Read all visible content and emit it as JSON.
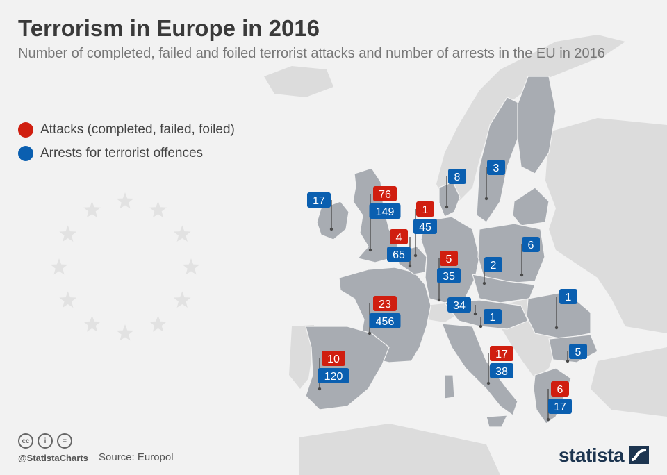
{
  "header": {
    "title": "Terrorism in Europe in 2016",
    "subtitle": "Number of completed, failed and foiled terrorist attacks and number of arrests in the EU in 2016"
  },
  "legend": [
    {
      "label": "Attacks (completed, failed, foiled)",
      "color": "#d01e0f"
    },
    {
      "label": "Arrests for terrorist offences",
      "color": "#0a5fb0"
    }
  ],
  "colors": {
    "attack": "#d01e0f",
    "arrest": "#0a5fb0",
    "eu_country": "#a8acb2",
    "non_eu_land": "#dcdcdc",
    "background": "#f2f2f2",
    "eu_stars": "#e2e2e2"
  },
  "markers": [
    {
      "country": "Ireland",
      "arrests": "17"
    },
    {
      "country": "United Kingdom",
      "attacks": "76",
      "arrests": "149"
    },
    {
      "country": "Netherlands",
      "attacks": "1",
      "arrests": "45"
    },
    {
      "country": "Belgium",
      "attacks": "4",
      "arrests": "65"
    },
    {
      "country": "Denmark",
      "arrests": "8"
    },
    {
      "country": "Sweden",
      "arrests": "3"
    },
    {
      "country": "Poland",
      "arrests": "6"
    },
    {
      "country": "Germany",
      "attacks": "5",
      "arrests": "35"
    },
    {
      "country": "Czech Republic",
      "arrests": "2"
    },
    {
      "country": "Austria",
      "arrests": "34"
    },
    {
      "country": "Slovenia",
      "arrests": "1"
    },
    {
      "country": "France",
      "attacks": "23",
      "arrests": "456"
    },
    {
      "country": "Spain",
      "attacks": "10",
      "arrests": "120"
    },
    {
      "country": "Italy",
      "attacks": "17",
      "arrests": "38"
    },
    {
      "country": "Romania",
      "arrests": "1"
    },
    {
      "country": "Bulgaria",
      "arrests": "5"
    },
    {
      "country": "Greece",
      "attacks": "6",
      "arrests": "17"
    }
  ],
  "footer": {
    "cc_icons": [
      "cc-icon",
      "by-icon",
      "nd-icon"
    ],
    "cc_labels": [
      "cc",
      "i",
      "="
    ],
    "handle": "@StatistaCharts",
    "source": "Source: Europol",
    "brand": "statista"
  }
}
